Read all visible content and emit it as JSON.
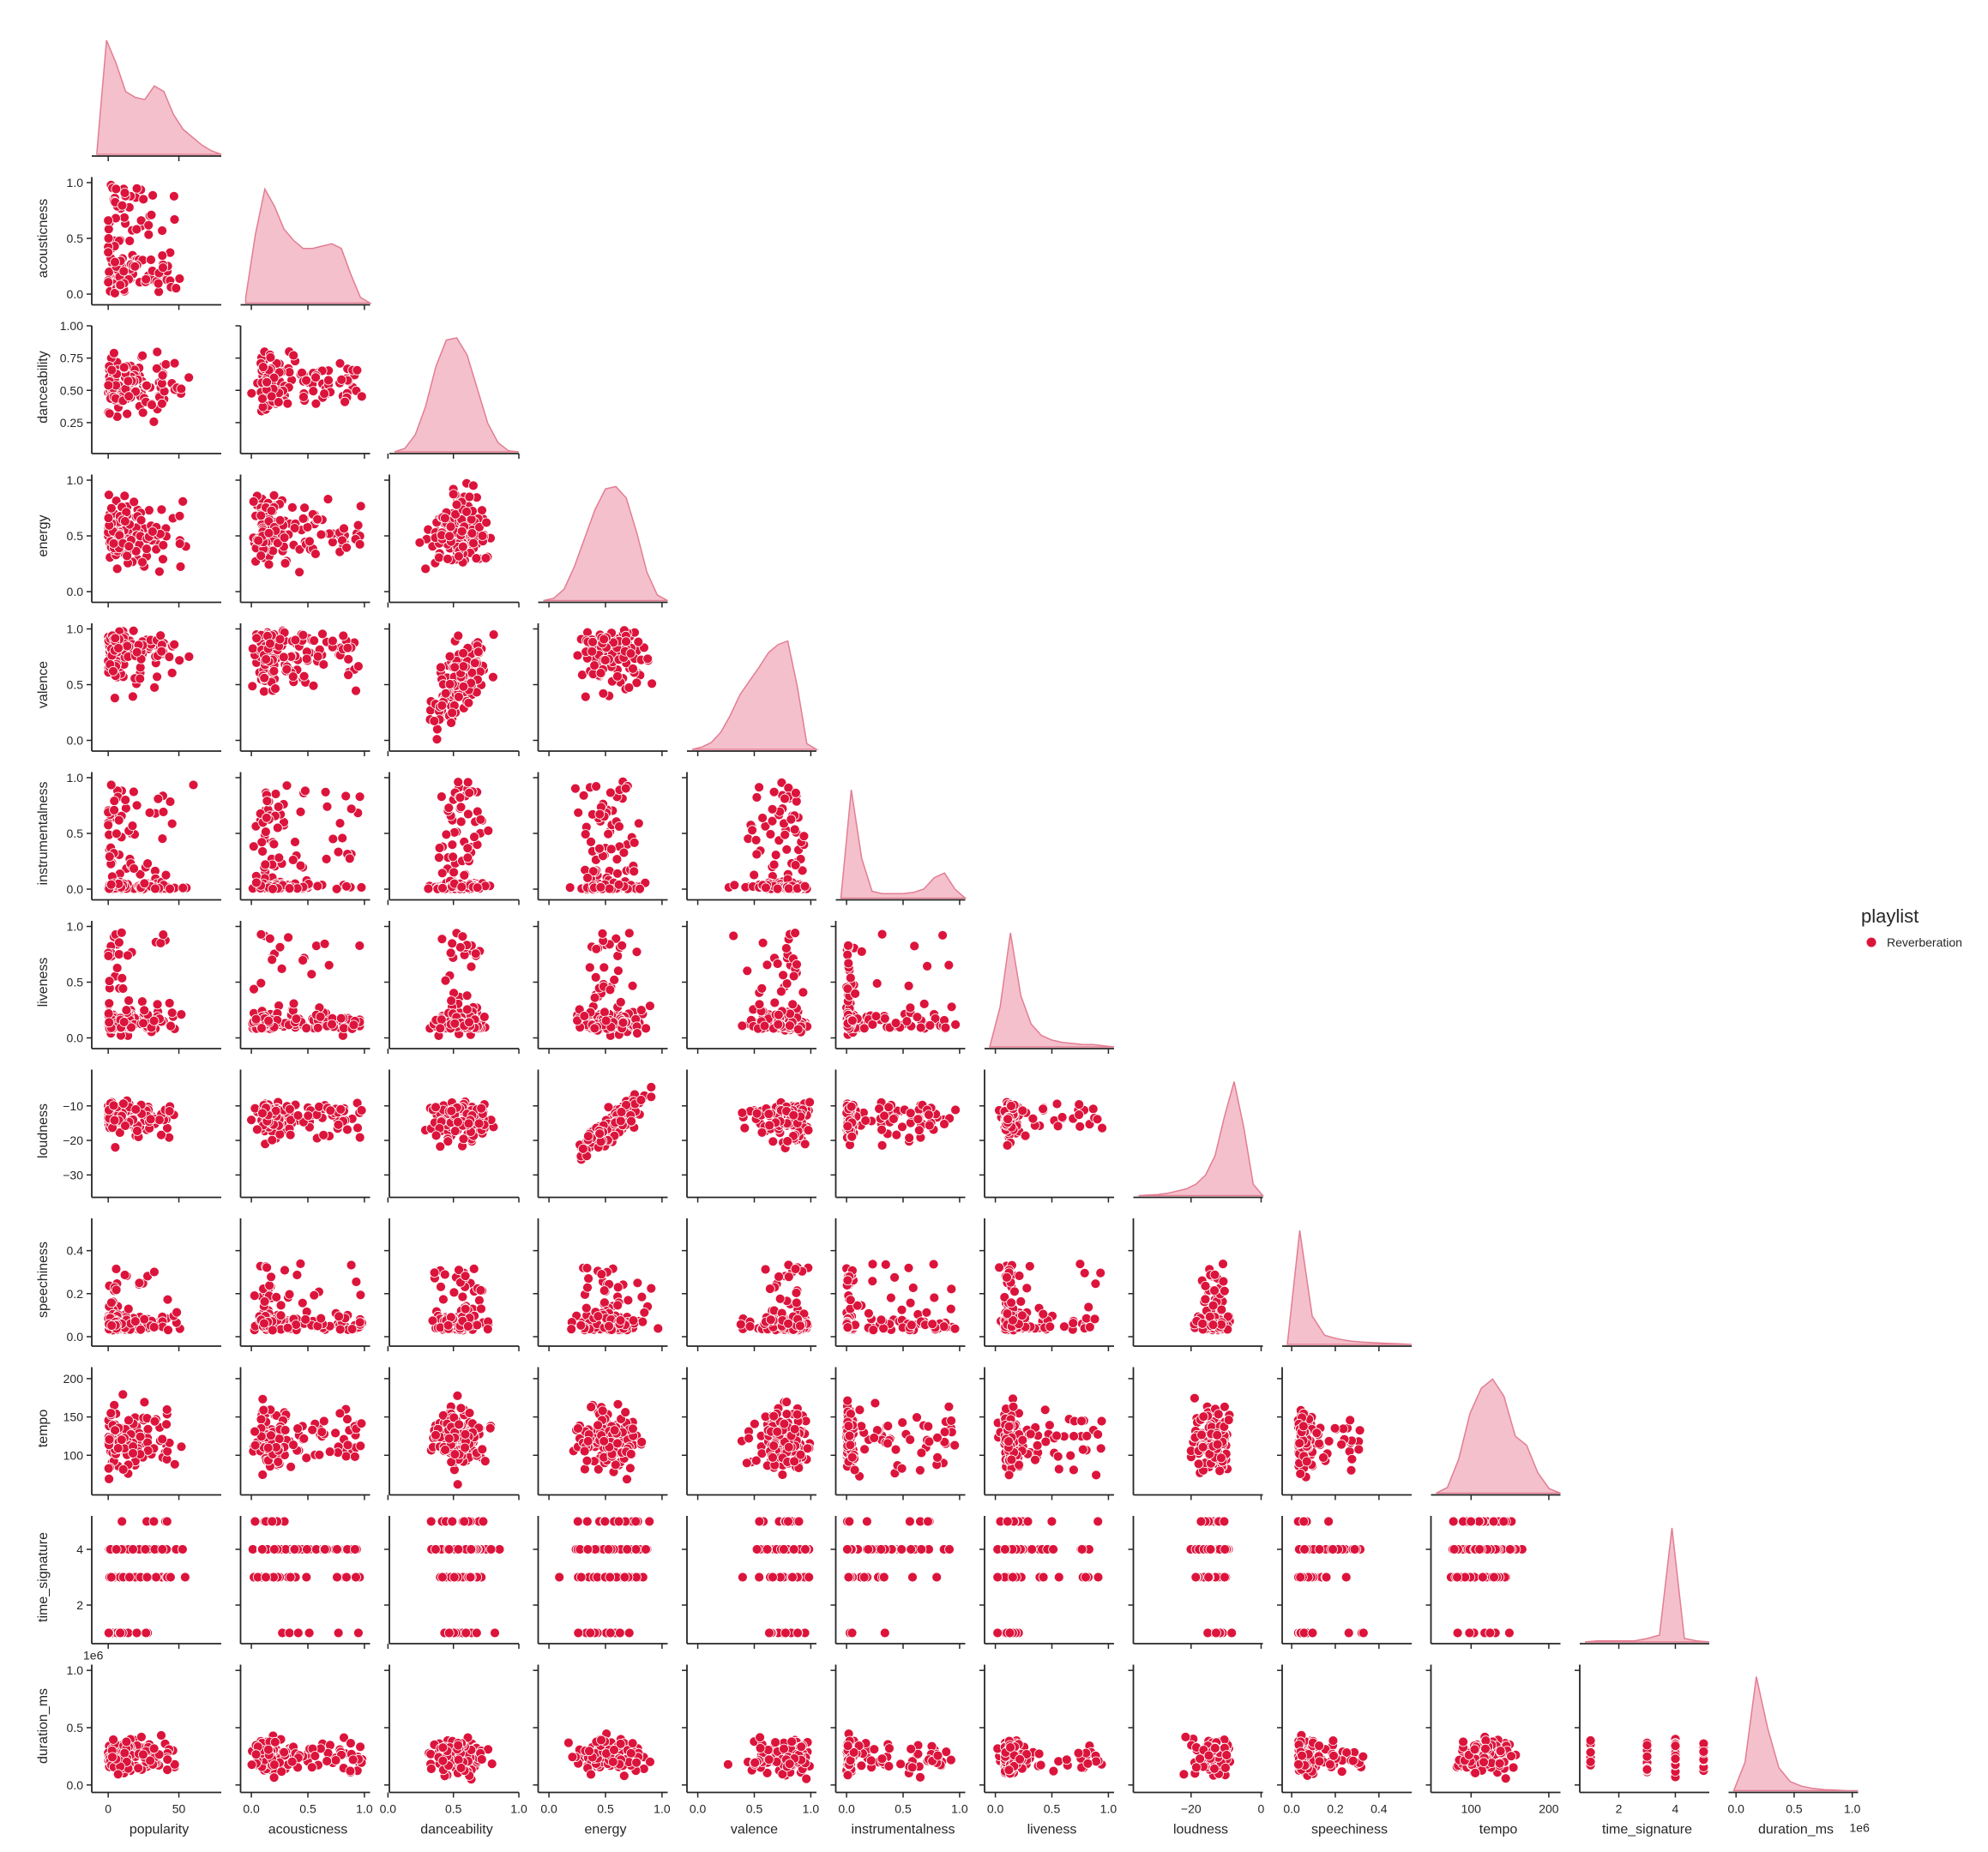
{
  "chart_data": {
    "type": "scatter",
    "kind": "pairplot",
    "corner": true,
    "diagonal": "kde",
    "color": "#dc143c",
    "kde_fill": "#f4c0cc",
    "kde_line": "#e37d92",
    "legend": {
      "title": "playlist",
      "entries": [
        "Reverberation"
      ],
      "placement": "right"
    },
    "variables": [
      {
        "name": "popularity",
        "range": [
          -8,
          80
        ],
        "ticks": [
          0,
          50
        ],
        "tick_labels": [
          "0",
          "50"
        ]
      },
      {
        "name": "acousticness",
        "range": [
          -0.05,
          1.05
        ],
        "ticks": [
          0,
          0.5,
          1
        ],
        "tick_labels": [
          "0.0",
          "0.5",
          "1.0"
        ]
      },
      {
        "name": "danceability",
        "range": [
          0.05,
          1.0
        ],
        "ticks": [
          0.25,
          0.5,
          0.75,
          1.0
        ],
        "tick_labels": [
          "0.25",
          "0.50",
          "0.75",
          "1.00"
        ],
        "x_ticks": [
          0,
          0.5,
          1
        ],
        "x_tick_labels": [
          "0.0",
          "0.5",
          "1.0"
        ]
      },
      {
        "name": "energy",
        "range": [
          -0.05,
          1.05
        ],
        "ticks": [
          0,
          0.5,
          1
        ],
        "tick_labels": [
          "0.0",
          "0.5",
          "1.0"
        ]
      },
      {
        "name": "valence",
        "range": [
          -0.05,
          1.05
        ],
        "ticks": [
          0,
          0.5,
          1
        ],
        "tick_labels": [
          "0.0",
          "0.5",
          "1.0"
        ]
      },
      {
        "name": "instrumentalness",
        "range": [
          -0.05,
          1.05
        ],
        "ticks": [
          0,
          0.5,
          1
        ],
        "tick_labels": [
          "0.0",
          "0.5",
          "1.0"
        ]
      },
      {
        "name": "liveness",
        "range": [
          -0.05,
          1.05
        ],
        "ticks": [
          0,
          0.5,
          1
        ],
        "tick_labels": [
          "0.0",
          "0.5",
          "1.0"
        ]
      },
      {
        "name": "loudness",
        "range": [
          -35,
          0.5
        ],
        "ticks": [
          -30,
          -20,
          -10
        ],
        "tick_labels": [
          "−30",
          "−20",
          "−10"
        ],
        "x_ticks": [
          -20,
          0
        ],
        "x_tick_labels": [
          "−20",
          "0"
        ]
      },
      {
        "name": "speechiness",
        "range": [
          -0.02,
          0.55
        ],
        "ticks": [
          0,
          0.2,
          0.4
        ],
        "tick_labels": [
          "0.0",
          "0.2",
          "0.4"
        ],
        "x_ticks": [
          0,
          0.2,
          0.4
        ],
        "x_tick_labels": [
          "0.0",
          "0.2",
          "0.4"
        ]
      },
      {
        "name": "tempo",
        "range": [
          55,
          215
        ],
        "ticks": [
          100,
          150,
          200
        ],
        "tick_labels": [
          "100",
          "150",
          "200"
        ],
        "x_ticks": [
          100,
          200
        ],
        "x_tick_labels": [
          "100",
          "200"
        ]
      },
      {
        "name": "time_signature",
        "range": [
          0.8,
          5.2
        ],
        "ticks": [
          2,
          4
        ],
        "tick_labels": [
          "2",
          "4"
        ]
      },
      {
        "name": "duration_ms",
        "range": [
          -20000,
          1050000
        ],
        "ticks": [
          0,
          500000,
          1000000
        ],
        "tick_labels": [
          "0.0",
          "0.5",
          "1.0"
        ],
        "offset_label": "1e6"
      }
    ],
    "diagonal_kde": [
      [
        0.02,
        1.0,
        0.8,
        0.55,
        0.5,
        0.48,
        0.6,
        0.55,
        0.35,
        0.22,
        0.15,
        0.08,
        0.03,
        0.0
      ],
      [
        0.05,
        0.6,
        1.0,
        0.85,
        0.65,
        0.55,
        0.48,
        0.48,
        0.5,
        0.52,
        0.48,
        0.25,
        0.05,
        0.0
      ],
      [
        0.0,
        0.03,
        0.15,
        0.4,
        0.75,
        0.98,
        1.0,
        0.85,
        0.55,
        0.25,
        0.08,
        0.01,
        0.0
      ],
      [
        0.0,
        0.02,
        0.1,
        0.3,
        0.55,
        0.8,
        0.98,
        1.0,
        0.9,
        0.6,
        0.25,
        0.05,
        0.0
      ],
      [
        0.0,
        0.02,
        0.06,
        0.15,
        0.3,
        0.48,
        0.6,
        0.72,
        0.85,
        0.92,
        0.95,
        0.55,
        0.05,
        0.0
      ],
      [
        0.0,
        0.95,
        0.35,
        0.06,
        0.04,
        0.04,
        0.04,
        0.05,
        0.08,
        0.18,
        0.22,
        0.08,
        0.0
      ],
      [
        0.0,
        0.35,
        1.0,
        0.45,
        0.2,
        0.1,
        0.06,
        0.04,
        0.03,
        0.02,
        0.02,
        0.01,
        0.0
      ],
      [
        0.0,
        0.005,
        0.01,
        0.02,
        0.04,
        0.06,
        0.1,
        0.18,
        0.35,
        0.7,
        1.0,
        0.6,
        0.1,
        0.0
      ],
      [
        0.0,
        1.0,
        0.25,
        0.08,
        0.05,
        0.03,
        0.02,
        0.015,
        0.01,
        0.005,
        0.0
      ],
      [
        0.0,
        0.05,
        0.3,
        0.7,
        0.92,
        1.0,
        0.85,
        0.5,
        0.42,
        0.18,
        0.04,
        0.0
      ],
      [
        0.0,
        0.01,
        0.01,
        0.01,
        0.01,
        0.03,
        0.06,
        1.0,
        0.03,
        0.01,
        0.0
      ],
      [
        0.0,
        0.25,
        1.0,
        0.55,
        0.2,
        0.08,
        0.04,
        0.02,
        0.01,
        0.005,
        0.0,
        0.0
      ]
    ]
  }
}
